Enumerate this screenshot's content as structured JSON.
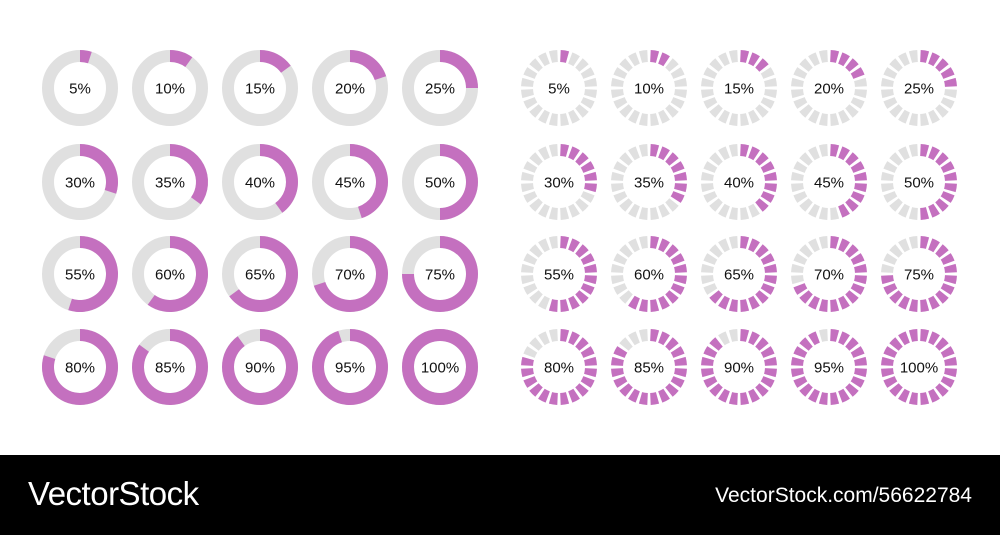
{
  "colors": {
    "fill": "#c470bf",
    "track": "#e0e0e0"
  },
  "segments_count": 20,
  "chart_data": {
    "type": "progress-rings",
    "sets": [
      {
        "style": "solid",
        "values": [
          5,
          10,
          15,
          20,
          25,
          30,
          35,
          40,
          45,
          50,
          55,
          60,
          65,
          70,
          75,
          80,
          85,
          90,
          95,
          100
        ]
      },
      {
        "style": "segmented",
        "values": [
          5,
          10,
          15,
          20,
          25,
          30,
          35,
          40,
          45,
          50,
          55,
          60,
          65,
          70,
          75,
          80,
          85,
          90,
          95,
          100
        ]
      }
    ],
    "labels": [
      "5%",
      "10%",
      "15%",
      "20%",
      "25%",
      "30%",
      "35%",
      "40%",
      "45%",
      "50%",
      "55%",
      "60%",
      "65%",
      "70%",
      "75%",
      "80%",
      "85%",
      "90%",
      "95%",
      "100%"
    ]
  },
  "footer": {
    "brand": "VectorStock",
    "reference": "VectorStock.com/56622784"
  }
}
